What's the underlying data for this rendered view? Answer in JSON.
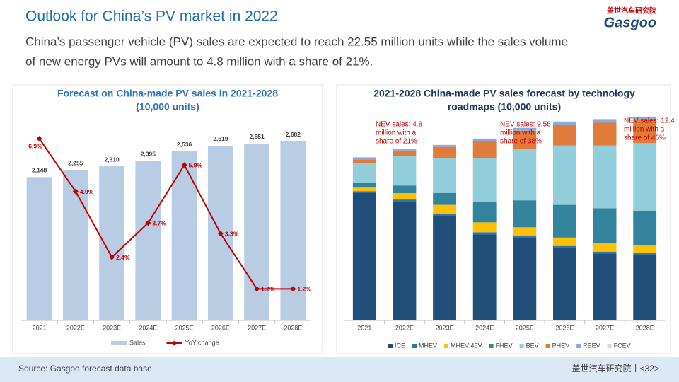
{
  "slide": {
    "title": "Outlook for China’s PV market in 2022",
    "subtitle": [
      "China’s passenger vehicle (PV) sales are expected to reach 22.55 million units while the sales volume",
      "of new energy PVs will amount to 4.8 million with a share of 21%."
    ],
    "logo_cn": "盖世汽车研究院",
    "logo_en": "Gasgoo",
    "source": "Source: Gasgoo forecast data base",
    "footer": "盖世汽车研究院丨<32>"
  },
  "chart_data": [
    {
      "type": "bar_line",
      "title": [
        "Forecast on China-made PV sales in 2021-2028",
        "(10,000 units)"
      ],
      "categories": [
        "2021",
        "2022E",
        "2023E",
        "2024E",
        "2025E",
        "2026E",
        "2027E",
        "2028E"
      ],
      "ylim": [
        0,
        3000
      ],
      "y2lim": [
        0,
        7.6
      ],
      "series": [
        {
          "name": "Sales",
          "color": "#b8cce4",
          "kind": "bar",
          "values": [
            2148,
            2255,
            2310,
            2395,
            2536,
            2619,
            2651,
            2682
          ],
          "value_labels": [
            "2,148",
            "2,255",
            "2,310",
            "2,395",
            "2,536",
            "2,619",
            "2,651",
            "2,682"
          ]
        },
        {
          "name": "YoY change",
          "color": "#c00000",
          "kind": "line",
          "axis": "y2",
          "values": [
            6.9,
            4.9,
            2.4,
            3.7,
            5.9,
            3.3,
            1.2,
            1.2
          ],
          "value_labels": [
            "6.9%",
            "4.9%",
            "2.4%",
            "3.7%",
            "5.9%",
            "3.3%",
            "1.2%",
            "1.2%"
          ]
        }
      ],
      "legend": "bottom"
    },
    {
      "type": "stacked_bar",
      "title": [
        "2021-2028 China-made PV sales forecast by technology",
        "roadmaps (10,000 units)"
      ],
      "categories": [
        "2021",
        "2022E",
        "2023E",
        "2024E",
        "2025E",
        "2026E",
        "2027E",
        "2028E"
      ],
      "ylim": [
        0,
        2800
      ],
      "series": [
        {
          "name": "ICE",
          "color": "#1f4e79",
          "values": [
            1680,
            1560,
            1370,
            1130,
            1080,
            950,
            880,
            860
          ]
        },
        {
          "name": "MHEV",
          "color": "#2e75b6",
          "values": [
            20,
            30,
            30,
            30,
            30,
            30,
            25,
            25
          ]
        },
        {
          "name": "MHEV 48V",
          "color": "#ffc000",
          "values": [
            47,
            84,
            120,
            130,
            115,
            110,
            110,
            105
          ]
        },
        {
          "name": "FHEV",
          "color": "#31849b",
          "values": [
            65,
            101,
            157,
            275,
            355,
            430,
            460,
            452
          ]
        },
        {
          "name": "BEV",
          "color": "#92cddc",
          "values": [
            260,
            390,
            460,
            570,
            680,
            780,
            825,
            890
          ]
        },
        {
          "name": "PHEV",
          "color": "#e07b39",
          "values": [
            47,
            70,
            145,
            220,
            235,
            270,
            300,
            300
          ]
        },
        {
          "name": "REEV",
          "color": "#8eaadb",
          "values": [
            25,
            18,
            25,
            36,
            37,
            45,
            46,
            45
          ]
        },
        {
          "name": "FCEV",
          "color": "#d9d9d9",
          "values": [
            4,
            2,
            3,
            4,
            4,
            4,
            5,
            5
          ]
        }
      ],
      "annotations": [
        [
          "NEV sales: 4.8",
          "million with a",
          "share of 21%"
        ],
        [
          "NEV sales: 9.56",
          "million with a",
          "share of 38%"
        ],
        [
          "NEV sales: 12.4",
          "million with a",
          "share of 46%"
        ]
      ],
      "annotation_color": "#c00000",
      "legend": "bottom"
    }
  ]
}
